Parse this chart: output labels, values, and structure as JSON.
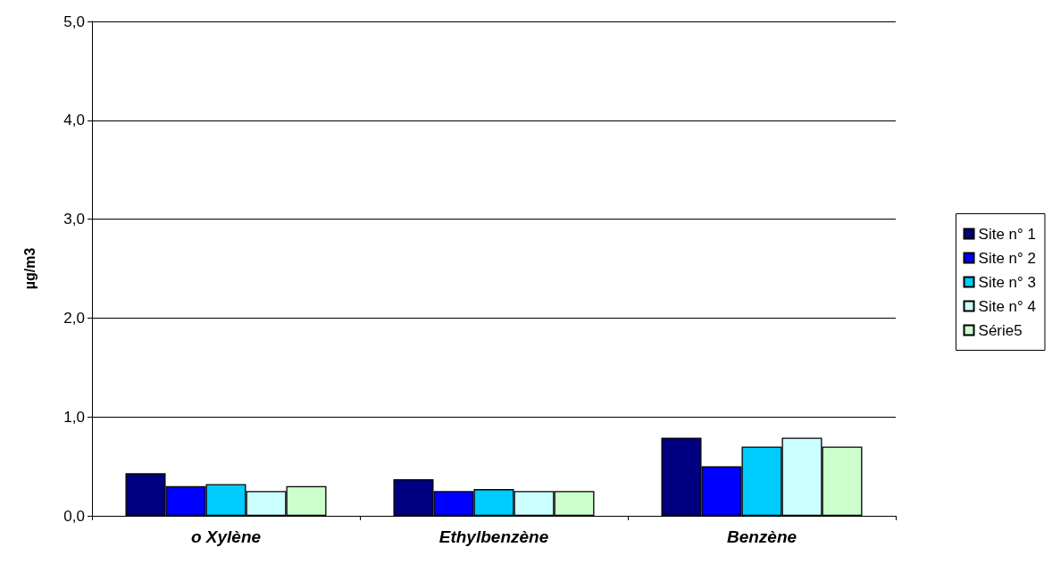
{
  "chart_data": {
    "type": "bar",
    "ylabel": "µg/m3",
    "categories": [
      "o Xylène",
      "Ethylbenzène",
      "Benzène"
    ],
    "series": [
      {
        "name": "Site n° 1",
        "color": "#000080",
        "values": [
          0.43,
          0.37,
          0.79
        ]
      },
      {
        "name": "Site n° 2",
        "color": "#0000ff",
        "values": [
          0.3,
          0.25,
          0.5
        ]
      },
      {
        "name": "Site n° 3",
        "color": "#00ccff",
        "values": [
          0.32,
          0.27,
          0.7
        ]
      },
      {
        "name": "Site n° 4",
        "color": "#ccffff",
        "values": [
          0.25,
          0.25,
          0.79
        ]
      },
      {
        "name": "Série5",
        "color": "#ccffcc",
        "values": [
          0.3,
          0.25,
          0.7
        ]
      }
    ],
    "ylim": [
      0,
      5
    ],
    "yticks": [
      {
        "value": 0,
        "label": "0,0"
      },
      {
        "value": 1,
        "label": "1,0"
      },
      {
        "value": 2,
        "label": "2,0"
      },
      {
        "value": 3,
        "label": "3,0"
      },
      {
        "value": 4,
        "label": "4,0"
      },
      {
        "value": 5,
        "label": "5,0"
      }
    ],
    "grid": "y",
    "legend": "right"
  }
}
